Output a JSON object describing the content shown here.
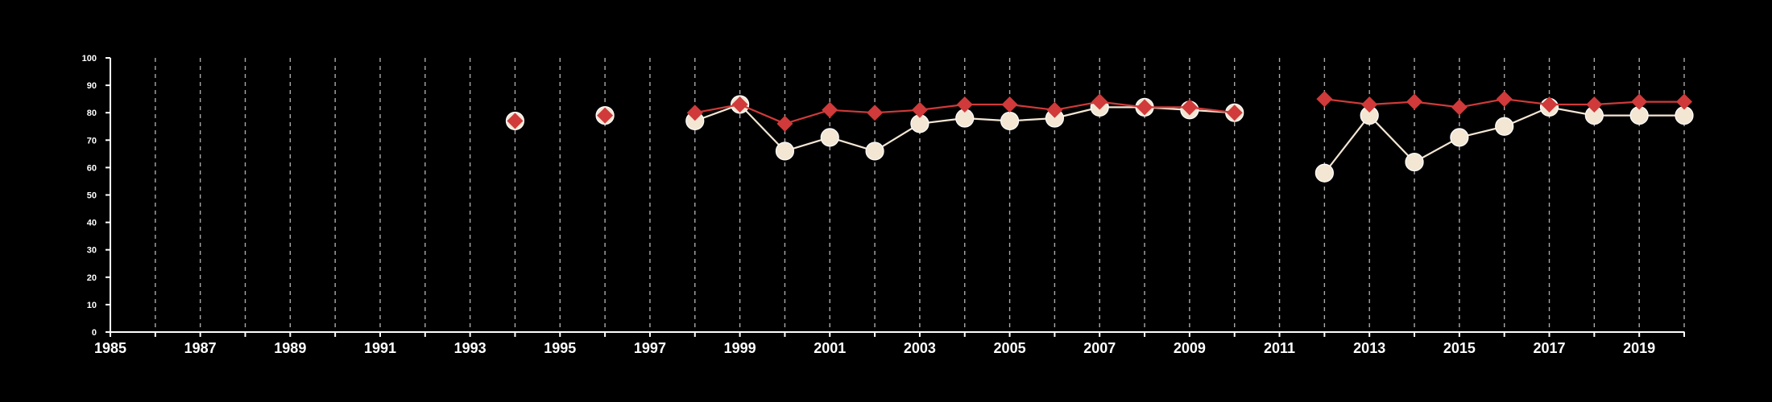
{
  "chart_data": {
    "type": "line",
    "title": "",
    "xlabel": "",
    "ylabel": "",
    "xlim": [
      1985,
      2020
    ],
    "ylim": [
      0,
      100
    ],
    "grid": "vertical dashed lines at every year",
    "legend": "none",
    "x_tick_labels": [
      "1985",
      "1987",
      "1989",
      "1991",
      "1993",
      "1995",
      "1997",
      "1999",
      "2001",
      "2003",
      "2005",
      "2007",
      "2009",
      "2011",
      "2013",
      "2015",
      "2017",
      "2019"
    ],
    "y_tick_labels": [
      "0",
      "10",
      "20",
      "30",
      "40",
      "50",
      "60",
      "70",
      "80",
      "90",
      "100"
    ],
    "series": [
      {
        "marker": "diamond",
        "color": "#d03a3a",
        "points": [
          {
            "x": 1994,
            "y": 77
          },
          {
            "x": 1996,
            "y": 79
          },
          {
            "x": 1998,
            "y": 80
          },
          {
            "x": 1999,
            "y": 83
          },
          {
            "x": 2000,
            "y": 76
          },
          {
            "x": 2001,
            "y": 81
          },
          {
            "x": 2002,
            "y": 80
          },
          {
            "x": 2003,
            "y": 81
          },
          {
            "x": 2004,
            "y": 83
          },
          {
            "x": 2005,
            "y": 83
          },
          {
            "x": 2006,
            "y": 81
          },
          {
            "x": 2007,
            "y": 84
          },
          {
            "x": 2008,
            "y": 82
          },
          {
            "x": 2009,
            "y": 82
          },
          {
            "x": 2010,
            "y": 80
          },
          {
            "x": 2012,
            "y": 85
          },
          {
            "x": 2013,
            "y": 83
          },
          {
            "x": 2014,
            "y": 84
          },
          {
            "x": 2015,
            "y": 82
          },
          {
            "x": 2016,
            "y": 85
          },
          {
            "x": 2017,
            "y": 83
          },
          {
            "x": 2018,
            "y": 83
          },
          {
            "x": 2019,
            "y": 84
          },
          {
            "x": 2020,
            "y": 84
          }
        ]
      },
      {
        "marker": "circle",
        "color": "#f3e6d3",
        "points": [
          {
            "x": 1994,
            "y": 77
          },
          {
            "x": 1996,
            "y": 79
          },
          {
            "x": 1998,
            "y": 77
          },
          {
            "x": 1999,
            "y": 83
          },
          {
            "x": 2000,
            "y": 66
          },
          {
            "x": 2001,
            "y": 71
          },
          {
            "x": 2002,
            "y": 66
          },
          {
            "x": 2003,
            "y": 76
          },
          {
            "x": 2004,
            "y": 78
          },
          {
            "x": 2005,
            "y": 77
          },
          {
            "x": 2006,
            "y": 78
          },
          {
            "x": 2007,
            "y": 82
          },
          {
            "x": 2008,
            "y": 82
          },
          {
            "x": 2009,
            "y": 81
          },
          {
            "x": 2010,
            "y": 80
          },
          {
            "x": 2012,
            "y": 58
          },
          {
            "x": 2013,
            "y": 79
          },
          {
            "x": 2014,
            "y": 62
          },
          {
            "x": 2015,
            "y": 71
          },
          {
            "x": 2016,
            "y": 75
          },
          {
            "x": 2017,
            "y": 82
          },
          {
            "x": 2018,
            "y": 79
          },
          {
            "x": 2019,
            "y": 79
          },
          {
            "x": 2020,
            "y": 79
          }
        ]
      }
    ]
  }
}
